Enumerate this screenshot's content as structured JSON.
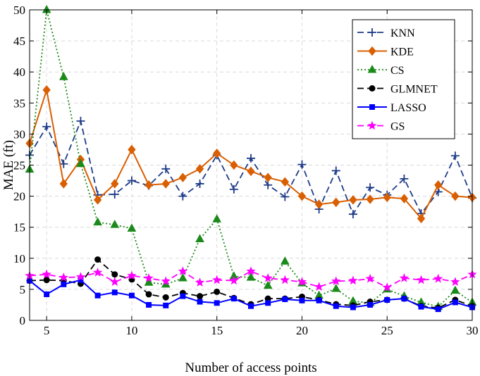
{
  "chart_data": {
    "type": "line",
    "title": "",
    "xlabel": "Number of access points",
    "ylabel": "MAE (ft)",
    "xlim": [
      4,
      30
    ],
    "ylim": [
      0,
      50
    ],
    "x_ticks": [
      5,
      10,
      15,
      20,
      25,
      30
    ],
    "y_ticks": [
      0,
      5,
      10,
      15,
      20,
      25,
      30,
      35,
      40,
      45,
      50
    ],
    "grid": true,
    "legend_position": "top-right",
    "x": [
      4,
      5,
      6,
      7,
      8,
      9,
      10,
      11,
      12,
      13,
      14,
      15,
      16,
      17,
      18,
      19,
      20,
      21,
      22,
      23,
      24,
      25,
      26,
      27,
      28,
      29,
      30
    ],
    "series": [
      {
        "name": "KNN",
        "color": "#1f3c88",
        "line": "dashed",
        "marker": "plus",
        "values": [
          26.6,
          31.2,
          25.2,
          32.1,
          20.2,
          20.3,
          22.5,
          21.7,
          24.4,
          20.0,
          22.0,
          26.6,
          21.1,
          26.1,
          21.8,
          19.9,
          25.1,
          17.9,
          24.1,
          17.1,
          21.4,
          20.2,
          22.8,
          17.2,
          20.7,
          26.5,
          19.7
        ]
      },
      {
        "name": "KDE",
        "color": "#d95f02",
        "line": "solid",
        "marker": "diamond",
        "values": [
          28.5,
          37.1,
          22.0,
          25.9,
          19.4,
          22.0,
          27.5,
          21.8,
          22.0,
          23.0,
          24.4,
          26.9,
          25.0,
          24.0,
          23.0,
          22.3,
          20.0,
          18.7,
          19.0,
          19.4,
          19.5,
          19.8,
          19.6,
          16.4,
          21.8,
          20.0,
          19.8
        ]
      },
      {
        "name": "CS",
        "color": "#1a8a1a",
        "line": "dotted",
        "marker": "triangle",
        "values": [
          24.3,
          50.0,
          39.2,
          25.2,
          15.8,
          15.4,
          14.8,
          6.1,
          5.8,
          6.8,
          13.1,
          16.3,
          7.1,
          6.9,
          5.6,
          9.5,
          6.0,
          4.0,
          5.1,
          3.1,
          2.8,
          5.0,
          3.9,
          2.9,
          2.2,
          4.8,
          2.9
        ]
      },
      {
        "name": "GLMNET",
        "color": "#000000",
        "line": "dashed",
        "marker": "circle",
        "values": [
          6.4,
          6.5,
          6.4,
          5.9,
          9.8,
          7.4,
          6.6,
          4.2,
          3.7,
          4.4,
          3.9,
          4.6,
          3.6,
          2.6,
          3.5,
          3.5,
          3.8,
          3.3,
          2.6,
          2.4,
          3.0,
          3.3,
          3.5,
          2.3,
          2.0,
          3.3,
          2.3
        ]
      },
      {
        "name": "LASSO",
        "color": "#0000ff",
        "line": "solid",
        "marker": "square",
        "values": [
          6.4,
          4.2,
          5.8,
          6.5,
          4.0,
          4.5,
          4.0,
          2.5,
          2.4,
          3.9,
          3.0,
          2.8,
          3.5,
          2.3,
          2.8,
          3.4,
          3.2,
          3.2,
          2.3,
          2.1,
          2.5,
          3.3,
          3.5,
          2.2,
          1.8,
          2.9,
          2.1
        ]
      },
      {
        "name": "GS",
        "color": "#ff00ff",
        "line": "dashed",
        "marker": "star",
        "values": [
          7.2,
          7.4,
          6.9,
          7.0,
          7.7,
          6.2,
          7.2,
          6.8,
          6.3,
          7.9,
          6.1,
          6.5,
          6.4,
          7.9,
          6.8,
          6.5,
          6.2,
          5.4,
          6.3,
          6.4,
          6.7,
          5.3,
          6.8,
          6.5,
          6.7,
          6.2,
          7.4
        ]
      }
    ]
  }
}
